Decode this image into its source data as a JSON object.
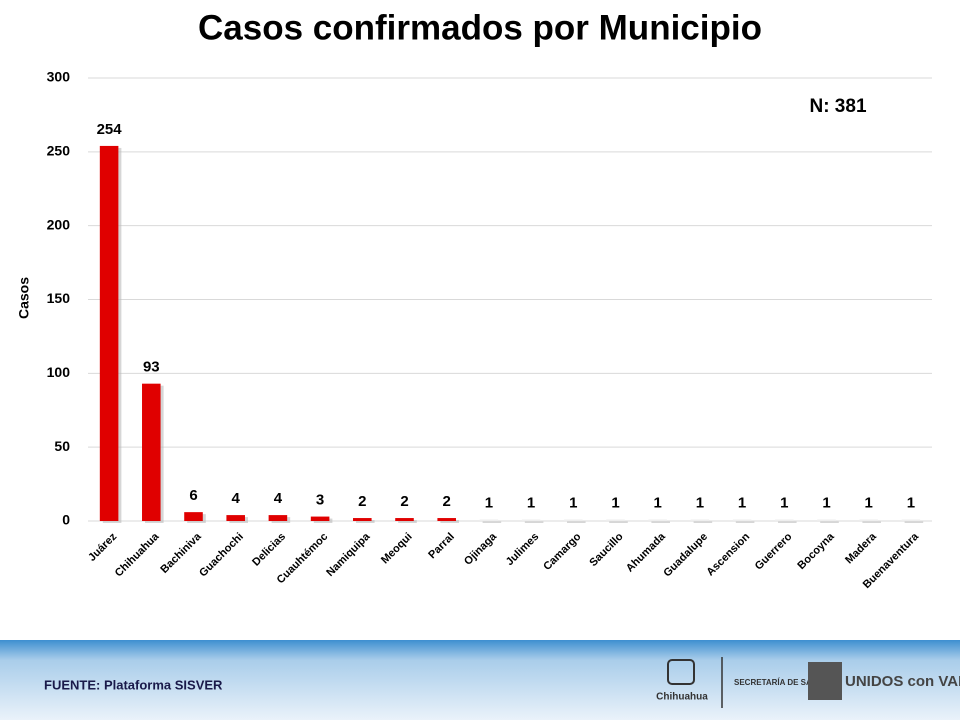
{
  "chart_data": {
    "type": "bar",
    "title": "Casos confirmados por Municipio",
    "y_label": "Casos",
    "annotation": "N: 381",
    "categories": [
      "Juárez",
      "Chihuahua",
      "Bachiniva",
      "Guachochi",
      "Delicias",
      "Cuauhtémoc",
      "Namiquipa",
      "Meoqui",
      "Parral",
      "Ojinaga",
      "Julimes",
      "Camargo",
      "Saucillo",
      "Ahumada",
      "Guadalupe",
      "Ascension",
      "Guerrero",
      "Bocoyna",
      "Madera",
      "Buenaventura"
    ],
    "values": [
      254,
      93,
      6,
      4,
      4,
      3,
      2,
      2,
      2,
      1,
      1,
      1,
      1,
      1,
      1,
      1,
      1,
      1,
      1,
      1
    ],
    "colors": [
      "#e00000",
      "#e00000",
      "#e00000",
      "#e00000",
      "#e00000",
      "#e00000",
      "#e00000",
      "#e00000",
      "#e00000",
      "#eeeeee",
      "#eeeeee",
      "#eeeeee",
      "#eeeeee",
      "#eeeeee",
      "#eeeeee",
      "#eeeeee",
      "#eeeeee",
      "#eeeeee",
      "#eeeeee",
      "#eeeeee"
    ],
    "ylim": [
      0,
      300
    ],
    "yticks": [
      0,
      50,
      100,
      150,
      200,
      250,
      300
    ],
    "grid": true
  },
  "footer": {
    "source": "FUENTE: Plataforma SISVER",
    "logo_state": "Chihuahua",
    "logo_dept": "SECRETARÍA DE SALUD",
    "logo_slogan": "UNIDOS con VALOR"
  }
}
